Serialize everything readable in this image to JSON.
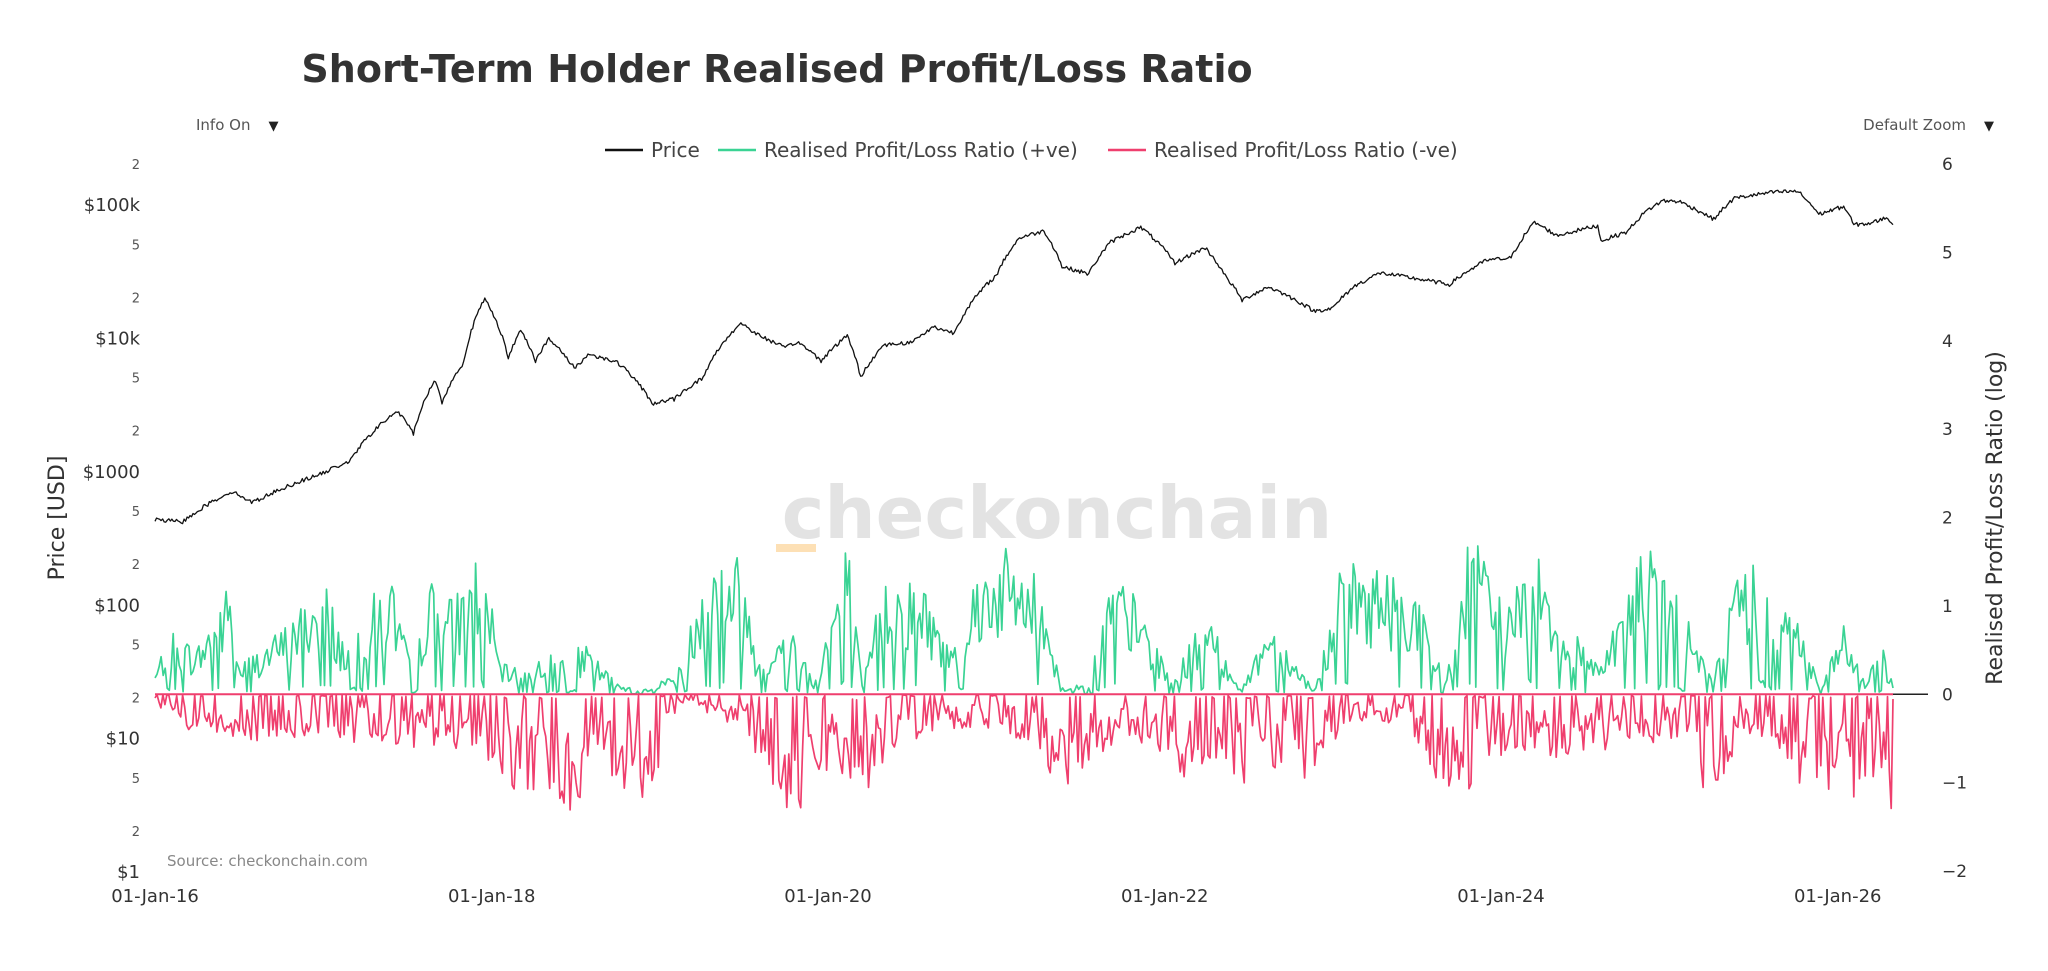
{
  "controls": {
    "info_label": "Info On",
    "zoom_label": "Default Zoom",
    "dropdown_arrow": "▼"
  },
  "watermark": "checkonchain",
  "source": "Source: checkonchain.com",
  "colors": {
    "price": "#111111",
    "positive": "#3ad394",
    "negative": "#ef3f6e",
    "watermark": "#e3e3e3",
    "watermark_accent": "#fde0b5"
  },
  "chart_data": {
    "type": "line",
    "title": "Short-Term Holder Realised Profit/Loss Ratio",
    "xlabel": "",
    "ylabel_left": "Price [USD]",
    "ylabel_right": "Realised Profit/Loss Ratio (log)",
    "x_range": [
      "2016-01-01",
      "2026-05-01"
    ],
    "x_ticks": [
      "01-Jan-16",
      "01-Jan-18",
      "01-Jan-20",
      "01-Jan-22",
      "01-Jan-24",
      "01-Jan-26"
    ],
    "x_tick_dates": [
      "2016-01-01",
      "2018-01-01",
      "2020-01-01",
      "2022-01-01",
      "2024-01-01",
      "2026-01-01"
    ],
    "y_left": {
      "scale": "log",
      "range": [
        1,
        200000
      ],
      "major_ticks": [
        {
          "value": 1,
          "label": "$1"
        },
        {
          "value": 10,
          "label": "$10"
        },
        {
          "value": 100,
          "label": "$100"
        },
        {
          "value": 1000,
          "label": "$1000"
        },
        {
          "value": 10000,
          "label": "$10k"
        },
        {
          "value": 100000,
          "label": "$100k"
        }
      ],
      "minor_ticks": [
        {
          "value": 2,
          "label": "2"
        },
        {
          "value": 5,
          "label": "5"
        },
        {
          "value": 20,
          "label": "2"
        },
        {
          "value": 50,
          "label": "5"
        },
        {
          "value": 200,
          "label": "2"
        },
        {
          "value": 500,
          "label": "5"
        },
        {
          "value": 2000,
          "label": "2"
        },
        {
          "value": 5000,
          "label": "5"
        },
        {
          "value": 20000,
          "label": "2"
        },
        {
          "value": 50000,
          "label": "5"
        },
        {
          "value": 200000,
          "label": "2"
        }
      ]
    },
    "y_right": {
      "scale": "log",
      "range": [
        -2,
        6
      ],
      "ticks": [
        {
          "value": -2,
          "label": "−2"
        },
        {
          "value": -1,
          "label": "−1"
        },
        {
          "value": 0,
          "label": "0"
        },
        {
          "value": 1,
          "label": "1"
        },
        {
          "value": 2,
          "label": "2"
        },
        {
          "value": 3,
          "label": "3"
        },
        {
          "value": 4,
          "label": "4"
        },
        {
          "value": 5,
          "label": "5"
        },
        {
          "value": 6,
          "label": "6"
        }
      ]
    },
    "legend_position": "top-center",
    "series": [
      {
        "name": "Price",
        "axis": "left",
        "points": [
          [
            "2016-01-01",
            430
          ],
          [
            "2016-03-01",
            415
          ],
          [
            "2016-06-15",
            700
          ],
          [
            "2016-08-01",
            580
          ],
          [
            "2016-12-31",
            960
          ],
          [
            "2017-03-01",
            1200
          ],
          [
            "2017-06-10",
            2800
          ],
          [
            "2017-07-15",
            1900
          ],
          [
            "2017-09-01",
            4800
          ],
          [
            "2017-09-15",
            3200
          ],
          [
            "2017-11-01",
            6500
          ],
          [
            "2017-12-17",
            19500
          ],
          [
            "2018-02-06",
            6900
          ],
          [
            "2018-03-05",
            11400
          ],
          [
            "2018-04-06",
            6700
          ],
          [
            "2018-05-05",
            9700
          ],
          [
            "2018-06-29",
            5900
          ],
          [
            "2018-08-01",
            7500
          ],
          [
            "2018-10-01",
            6500
          ],
          [
            "2018-11-20",
            4300
          ],
          [
            "2018-12-15",
            3200
          ],
          [
            "2019-02-01",
            3450
          ],
          [
            "2019-04-05",
            5000
          ],
          [
            "2019-06-26",
            12800
          ],
          [
            "2019-08-01",
            10500
          ],
          [
            "2019-09-30",
            8300
          ],
          [
            "2019-10-26",
            9300
          ],
          [
            "2019-12-17",
            6700
          ],
          [
            "2020-02-12",
            10300
          ],
          [
            "2020-03-12",
            5000
          ],
          [
            "2020-05-01",
            8800
          ],
          [
            "2020-07-01",
            9200
          ],
          [
            "2020-08-17",
            12000
          ],
          [
            "2020-10-01",
            10800
          ],
          [
            "2020-12-31",
            29000
          ],
          [
            "2021-02-20",
            56000
          ],
          [
            "2021-04-14",
            63000
          ],
          [
            "2021-05-23",
            34000
          ],
          [
            "2021-07-20",
            30000
          ],
          [
            "2021-09-06",
            52000
          ],
          [
            "2021-11-10",
            67000
          ],
          [
            "2022-01-23",
            36000
          ],
          [
            "2022-03-30",
            47000
          ],
          [
            "2022-05-12",
            29000
          ],
          [
            "2022-06-18",
            19000
          ],
          [
            "2022-08-14",
            24000
          ],
          [
            "2022-11-21",
            15800
          ],
          [
            "2023-01-01",
            16600
          ],
          [
            "2023-02-15",
            24000
          ],
          [
            "2023-04-14",
            30500
          ],
          [
            "2023-09-11",
            25000
          ],
          [
            "2023-12-01",
            38000
          ],
          [
            "2024-01-23",
            39500
          ],
          [
            "2024-03-14",
            73000
          ],
          [
            "2024-05-01",
            58000
          ],
          [
            "2024-07-29",
            69000
          ],
          [
            "2024-08-05",
            53000
          ],
          [
            "2024-10-01",
            62000
          ],
          [
            "2024-11-12",
            89000
          ],
          [
            "2024-12-17",
            106000
          ],
          [
            "2025-01-21",
            105000
          ],
          [
            "2025-04-07",
            77000
          ],
          [
            "2025-05-22",
            111000
          ],
          [
            "2025-08-14",
            123000
          ],
          [
            "2025-10-06",
            125000
          ],
          [
            "2025-11-21",
            84000
          ],
          [
            "2026-01-14",
            96000
          ],
          [
            "2026-02-05",
            70000
          ],
          [
            "2026-03-15",
            72000
          ],
          [
            "2026-04-20",
            80000
          ],
          [
            "2026-05-01",
            68000
          ]
        ]
      },
      {
        "name": "Realised Profit/Loss Ratio (+ve)",
        "axis": "right",
        "points": [
          [
            "2016-01-01",
            0.25
          ],
          [
            "2016-02-01",
            0.75
          ],
          [
            "2016-04-01",
            0.55
          ],
          [
            "2016-06-16",
            1.35
          ],
          [
            "2016-07-01",
            0.35
          ],
          [
            "2016-10-01",
            0.75
          ],
          [
            "2017-01-03",
            1.35
          ],
          [
            "2017-02-15",
            0.6
          ],
          [
            "2017-05-25",
            1.45
          ],
          [
            "2017-07-15",
            0.2
          ],
          [
            "2017-08-15",
            1.35
          ],
          [
            "2017-10-10",
            1.1
          ],
          [
            "2017-12-10",
            1.75
          ],
          [
            "2018-01-20",
            0.35
          ],
          [
            "2018-03-01",
            0.3
          ],
          [
            "2018-05-05",
            0.45
          ],
          [
            "2018-07-25",
            0.55
          ],
          [
            "2018-10-01",
            0.12
          ],
          [
            "2018-12-10",
            0.05
          ],
          [
            "2019-02-20",
            0.35
          ],
          [
            "2019-04-03",
            1.5
          ],
          [
            "2019-05-15",
            1.65
          ],
          [
            "2019-06-26",
            1.6
          ],
          [
            "2019-08-01",
            0.45
          ],
          [
            "2019-10-26",
            0.8
          ],
          [
            "2019-12-01",
            0.1
          ],
          [
            "2020-02-12",
            1.85
          ],
          [
            "2020-03-15",
            0.1
          ],
          [
            "2020-05-01",
            1.4
          ],
          [
            "2020-07-27",
            1.3
          ],
          [
            "2020-09-15",
            0.6
          ],
          [
            "2020-11-20",
            1.45
          ],
          [
            "2021-01-08",
            1.7
          ],
          [
            "2021-02-20",
            1.55
          ],
          [
            "2021-04-14",
            1.3
          ],
          [
            "2021-05-20",
            0.08
          ],
          [
            "2021-07-20",
            0.12
          ],
          [
            "2021-09-06",
            1.4
          ],
          [
            "2021-10-20",
            1.2
          ],
          [
            "2021-11-10",
            1.0
          ],
          [
            "2022-01-15",
            0.15
          ],
          [
            "2022-03-30",
            0.95
          ],
          [
            "2022-06-18",
            0.05
          ],
          [
            "2022-08-14",
            0.9
          ],
          [
            "2022-11-21",
            0.05
          ],
          [
            "2023-01-20",
            1.5
          ],
          [
            "2023-03-20",
            1.5
          ],
          [
            "2023-06-25",
            1.3
          ],
          [
            "2023-09-01",
            0.15
          ],
          [
            "2023-10-25",
            1.9
          ],
          [
            "2023-12-08",
            1.4
          ],
          [
            "2024-01-10",
            1.0
          ],
          [
            "2024-03-14",
            1.9
          ],
          [
            "2024-05-20",
            0.8
          ],
          [
            "2024-08-01",
            0.4
          ],
          [
            "2024-11-12",
            1.8
          ],
          [
            "2025-01-20",
            1.1
          ],
          [
            "2025-04-01",
            0.2
          ],
          [
            "2025-05-20",
            1.35
          ],
          [
            "2025-07-14",
            1.65
          ],
          [
            "2025-08-14",
            1.25
          ],
          [
            "2025-10-06",
            0.95
          ],
          [
            "2025-11-25",
            0.05
          ],
          [
            "2026-01-14",
            0.8
          ],
          [
            "2026-03-01",
            0.15
          ],
          [
            "2026-04-10",
            0.55
          ],
          [
            "2026-05-01",
            0.1
          ]
        ]
      },
      {
        "name": "Realised Profit/Loss Ratio (-ve)",
        "axis": "right",
        "points": [
          [
            "2016-01-01",
            -0.1
          ],
          [
            "2016-03-01",
            -0.45
          ],
          [
            "2016-06-01",
            -0.45
          ],
          [
            "2016-08-01",
            -0.6
          ],
          [
            "2017-01-11",
            -0.5
          ],
          [
            "2017-07-16",
            -0.65
          ],
          [
            "2017-09-15",
            -0.55
          ],
          [
            "2018-01-20",
            -0.8
          ],
          [
            "2018-02-06",
            -1.2
          ],
          [
            "2018-04-06",
            -1.1
          ],
          [
            "2018-06-29",
            -1.35
          ],
          [
            "2018-08-10",
            -1.05
          ],
          [
            "2018-09-15",
            -0.9
          ],
          [
            "2018-11-20",
            -1.25
          ],
          [
            "2018-12-15",
            -1.2
          ],
          [
            "2019-01-20",
            -0.3
          ],
          [
            "2019-03-01",
            -0.1
          ],
          [
            "2019-07-10",
            -0.45
          ],
          [
            "2019-09-25",
            -1.4
          ],
          [
            "2019-11-20",
            -1.3
          ],
          [
            "2019-12-17",
            -1.3
          ],
          [
            "2020-01-10",
            -0.7
          ],
          [
            "2020-03-12",
            -1.45
          ],
          [
            "2020-04-15",
            -0.9
          ],
          [
            "2020-06-15",
            -0.55
          ],
          [
            "2020-09-05",
            -0.4
          ],
          [
            "2021-01-22",
            -0.45
          ],
          [
            "2021-05-19",
            -1.05
          ],
          [
            "2021-06-22",
            -1.0
          ],
          [
            "2021-07-20",
            -0.8
          ],
          [
            "2021-09-20",
            -0.55
          ],
          [
            "2021-12-04",
            -0.55
          ],
          [
            "2022-01-22",
            -1.05
          ],
          [
            "2022-03-01",
            -0.95
          ],
          [
            "2022-05-10",
            -1.0
          ],
          [
            "2022-06-18",
            -1.05
          ],
          [
            "2022-07-15",
            -0.8
          ],
          [
            "2022-09-20",
            -0.85
          ],
          [
            "2022-11-09",
            -1.15
          ],
          [
            "2022-12-20",
            -0.6
          ],
          [
            "2023-03-10",
            -0.3
          ],
          [
            "2023-06-15",
            -0.35
          ],
          [
            "2023-08-17",
            -1.05
          ],
          [
            "2023-09-10",
            -1.3
          ],
          [
            "2024-01-23",
            -0.6
          ],
          [
            "2024-04-13",
            -0.75
          ],
          [
            "2024-06-24",
            -0.7
          ],
          [
            "2024-08-05",
            -0.9
          ],
          [
            "2024-09-06",
            -0.65
          ],
          [
            "2025-01-13",
            -0.5
          ],
          [
            "2025-02-25",
            -0.65
          ],
          [
            "2025-03-10",
            -1.05
          ],
          [
            "2025-04-07",
            -1.1
          ],
          [
            "2025-06-20",
            -0.45
          ],
          [
            "2025-08-28",
            -0.7
          ],
          [
            "2025-10-10",
            -1.05
          ],
          [
            "2025-11-04",
            -1.1
          ],
          [
            "2025-11-21",
            -1.25
          ],
          [
            "2026-01-20",
            -0.85
          ],
          [
            "2026-02-05",
            -1.35
          ],
          [
            "2026-03-10",
            -0.95
          ],
          [
            "2026-04-15",
            -0.9
          ],
          [
            "2026-05-01",
            -1.5
          ]
        ]
      }
    ]
  }
}
